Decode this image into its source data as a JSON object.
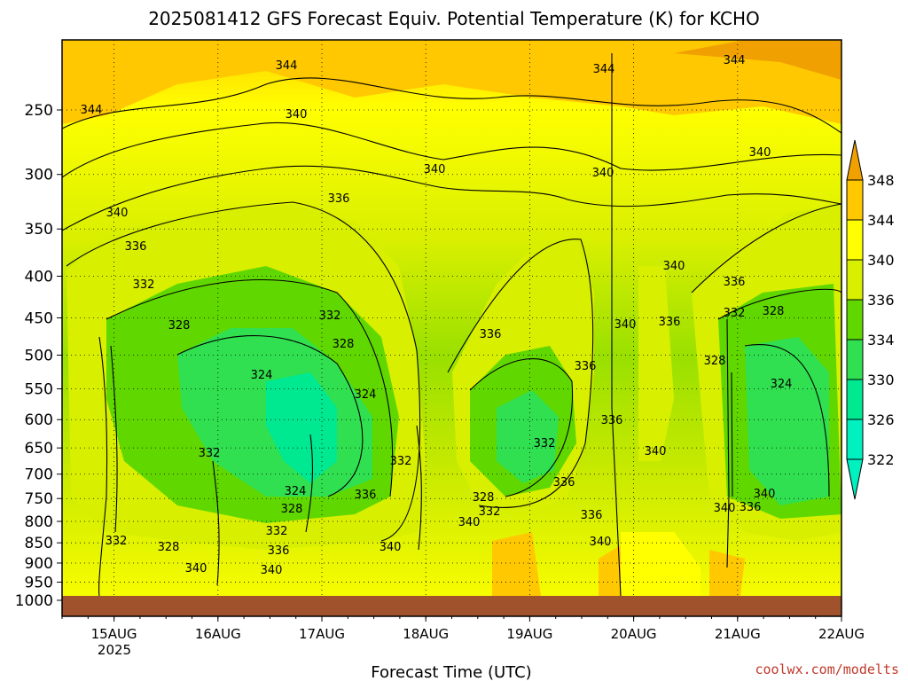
{
  "chart_data": {
    "type": "heatmap",
    "title": "2025081412 GFS Forecast Equiv. Potential Temperature (K) for KCHO",
    "xlabel": "Forecast Time (UTC)",
    "ylabel": "",
    "x_ticks": [
      "15AUG",
      "16AUG",
      "17AUG",
      "18AUG",
      "19AUG",
      "20AUG",
      "21AUG",
      "22AUG"
    ],
    "x_year_label": "2025",
    "xlim": [
      "2025-08-14 12Z",
      "2025-08-22 00Z"
    ],
    "y_ticks": [
      250,
      300,
      350,
      400,
      450,
      500,
      550,
      600,
      650,
      700,
      750,
      800,
      850,
      900,
      950,
      1000
    ],
    "ylim": [
      200,
      1020
    ],
    "y_scale": "log-pressure (inverted)",
    "colorbar": {
      "labels": [
        348,
        344,
        340,
        336,
        334,
        330,
        326,
        322
      ],
      "colors": [
        "#f0a000",
        "#ffc800",
        "#ffff00",
        "#d8ef00",
        "#60d800",
        "#30e050",
        "#00e890",
        "#00f0c0"
      ],
      "extend": "both"
    },
    "contour_labels": [
      "344",
      "344",
      "344",
      "344",
      "340",
      "340",
      "340",
      "340",
      "340",
      "336",
      "336",
      "332",
      "328",
      "332",
      "328",
      "324",
      "324",
      "340",
      "336",
      "336",
      "340",
      "336",
      "336",
      "328",
      "324",
      "328",
      "332",
      "332",
      "324",
      "328",
      "332",
      "336",
      "340",
      "340",
      "332",
      "328",
      "332",
      "336",
      "332",
      "340",
      "336",
      "340",
      "340",
      "336",
      "328",
      "332",
      "336",
      "340",
      "340",
      "336",
      "340"
    ],
    "surface_color": "#a0522d",
    "watermark": "coolwx.com/modelts"
  }
}
